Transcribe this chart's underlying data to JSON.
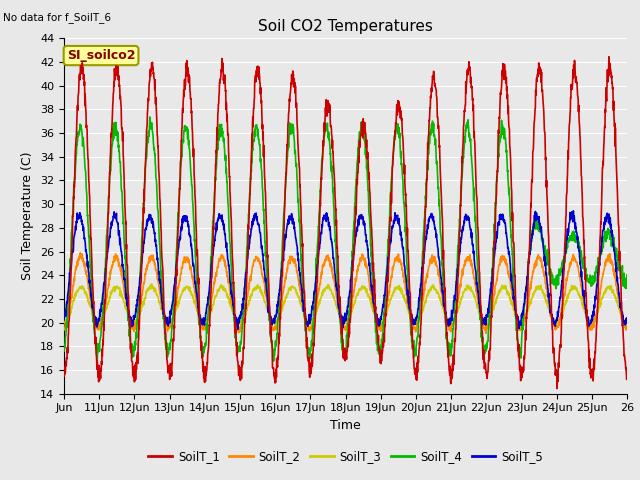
{
  "title": "Soil CO2 Temperatures",
  "xlabel": "Time",
  "ylabel": "Soil Temperature (C)",
  "ylim": [
    14,
    44
  ],
  "xlim": [
    0,
    16
  ],
  "no_data_note": "No data for f_SoilT_6",
  "watermark": "SI_soilco2",
  "x_tick_labels": [
    "Jun",
    "11Jun",
    "12Jun",
    "13Jun",
    "14Jun",
    "15Jun",
    "16Jun",
    "17Jun",
    "18Jun",
    "19Jun",
    "20Jun",
    "21Jun",
    "22Jun",
    "23Jun",
    "24Jun",
    "25Jun",
    "26"
  ],
  "legend_labels": [
    "SoilT_1",
    "SoilT_2",
    "SoilT_3",
    "SoilT_4",
    "SoilT_5"
  ],
  "line_colors": [
    "#cc0000",
    "#ff8800",
    "#cccc00",
    "#00bb00",
    "#0000cc"
  ],
  "bg_color": "#e8e8e8",
  "fig_bg": "#e8e8e8",
  "grid_color": "#ffffff",
  "title_fontsize": 11,
  "label_fontsize": 9,
  "tick_fontsize": 8
}
